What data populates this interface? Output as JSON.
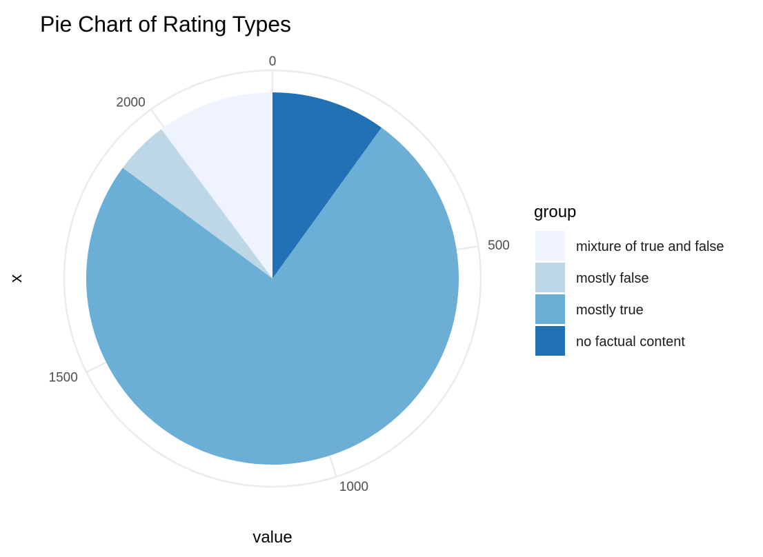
{
  "chart_data": {
    "type": "pie",
    "title": "Pie Chart of Rating Types",
    "xlabel": "value",
    "ylabel": "x",
    "legend_title": "group",
    "legend_position": "right",
    "grid": true,
    "radial_axis": {
      "max": 2220,
      "ticks": [
        0,
        500,
        1000,
        1500,
        2000
      ],
      "tick_labels": [
        "0",
        "500",
        "1000",
        "1500",
        "2000"
      ]
    },
    "slices": [
      {
        "label": "no factual content",
        "value": 221,
        "color": "#2171B5"
      },
      {
        "label": "mostly true",
        "value": 1669,
        "color": "#6BAED6"
      },
      {
        "label": "mostly false",
        "value": 104,
        "color": "#BDD7E7"
      },
      {
        "label": "mixture of true and false",
        "value": 226,
        "color": "#EFF3FF"
      }
    ],
    "legend_order": [
      "mixture of true and false",
      "mostly false",
      "mostly true",
      "no factual content"
    ]
  }
}
